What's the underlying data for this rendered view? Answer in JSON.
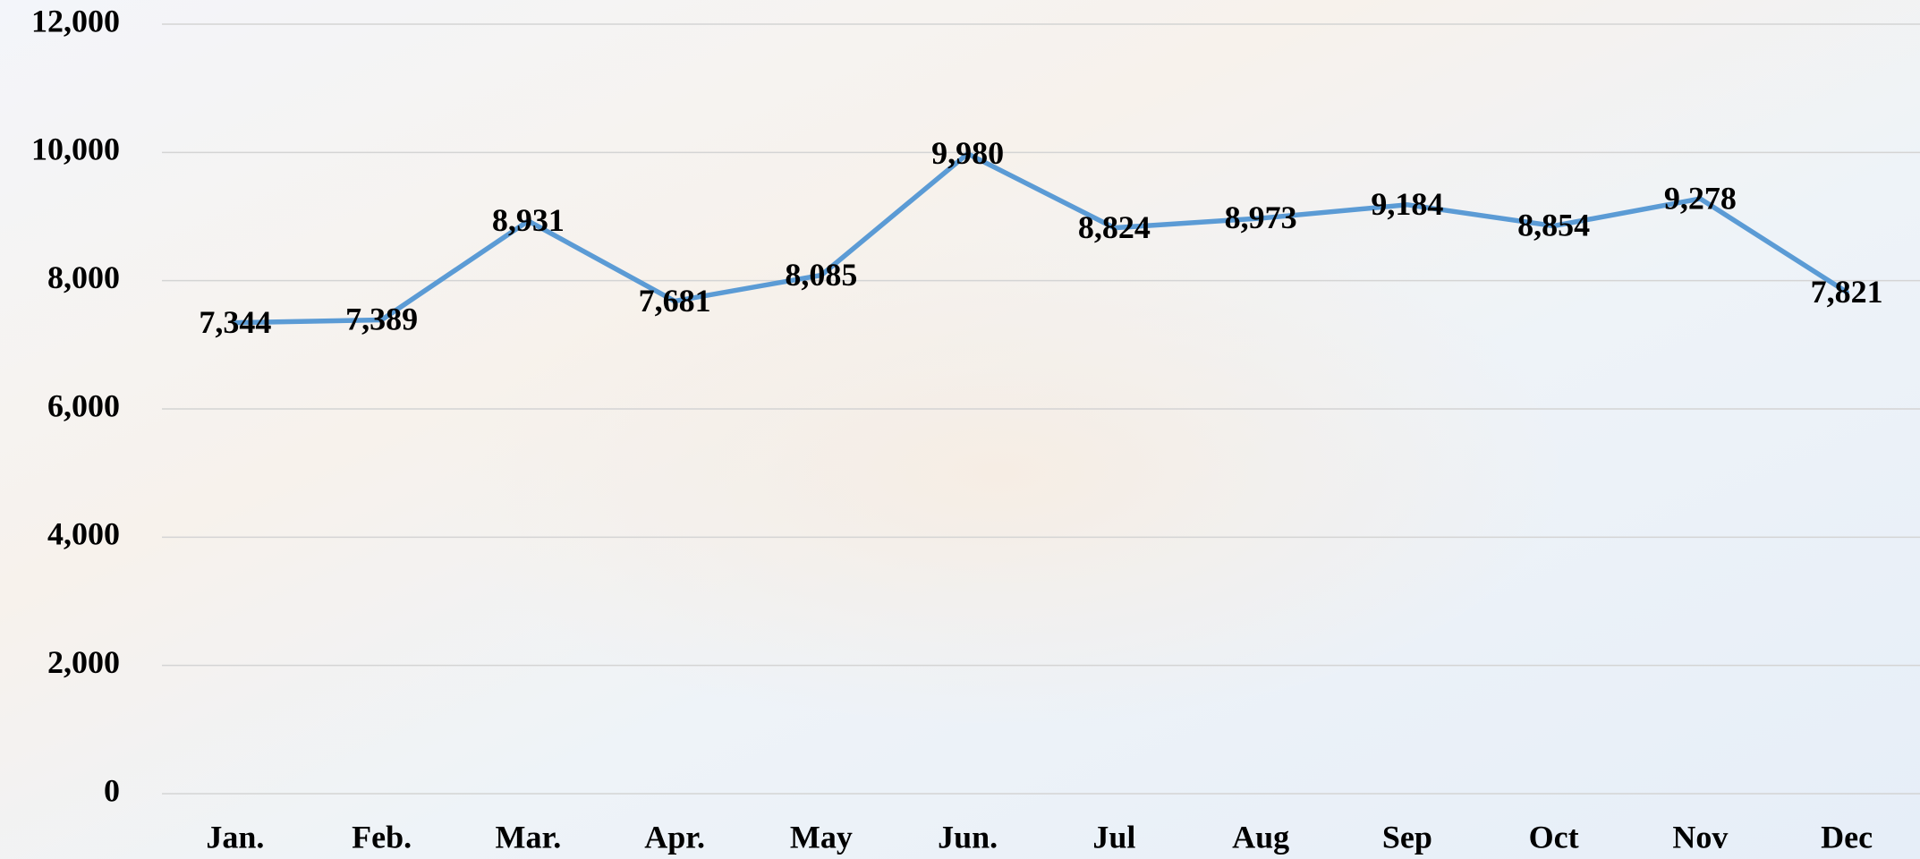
{
  "chart_data": {
    "type": "line",
    "categories": [
      "Jan.",
      "Feb.",
      "Mar.",
      "Apr.",
      "May",
      "Jun.",
      "Jul",
      "Aug",
      "Sep",
      "Oct",
      "Nov",
      "Dec"
    ],
    "values": [
      7344,
      7389,
      8931,
      7681,
      8085,
      9980,
      8824,
      8973,
      9184,
      8854,
      9278,
      7821
    ],
    "value_labels": [
      "7,344",
      "7,389",
      "8,931",
      "7,681",
      "8,085",
      "9,980",
      "8,824",
      "8,973",
      "9,184",
      "8,854",
      "9,278",
      "7,821"
    ],
    "color": "#5b9bd5",
    "ylim": [
      0,
      12000
    ],
    "yticks": [
      0,
      {
        "value": 2000,
        "label": "2,000"
      },
      {
        "value": 4000,
        "label": "4,000"
      },
      {
        "value": 6000,
        "label": "6,000"
      },
      {
        "value": 8000,
        "label": "8,000"
      },
      {
        "value": 10000,
        "label": "10,000"
      },
      {
        "value": 12000,
        "label": "12,000"
      }
    ],
    "grid": true
  }
}
